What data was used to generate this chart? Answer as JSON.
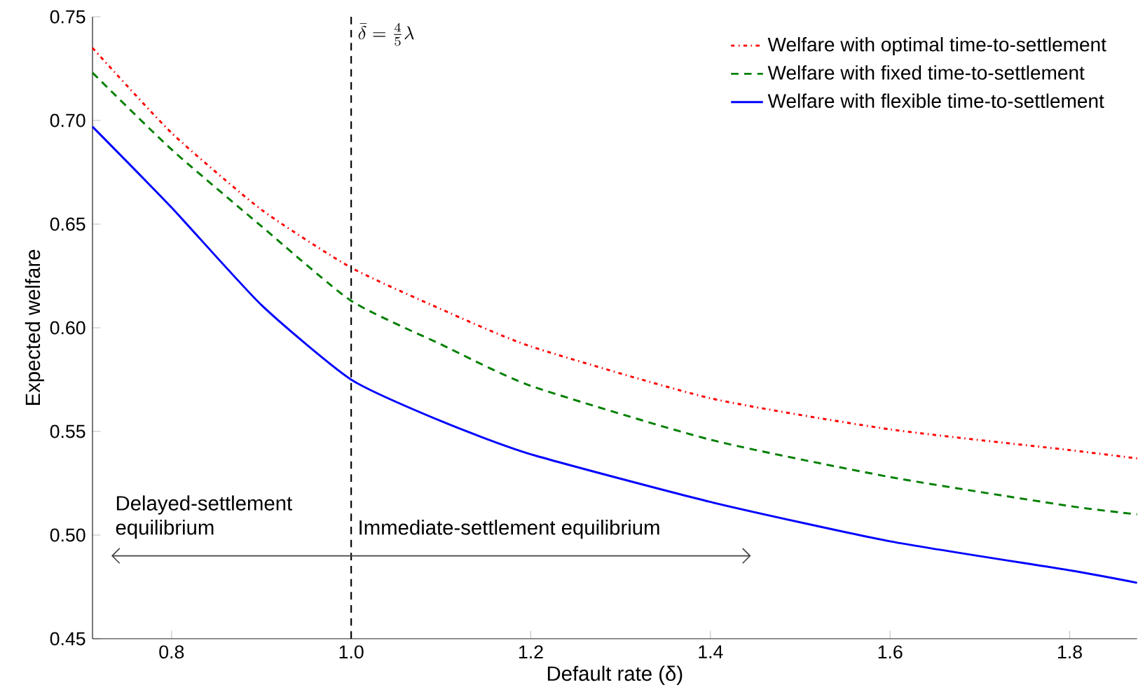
{
  "chart_data": {
    "type": "line",
    "xlabel": "Default rate (δ)",
    "ylabel": "Expected welfare",
    "xlim": [
      0.712,
      1.875
    ],
    "ylim": [
      0.45,
      0.75
    ],
    "xticks": [
      0.8,
      {
        "value": 1.0,
        "label": "1.0"
      },
      1.2,
      1.4,
      1.6,
      1.8
    ],
    "yticks": [
      0.45,
      {
        "value": 0.5,
        "label": "0.50"
      },
      0.55,
      {
        "value": 0.6,
        "label": "0.60"
      },
      0.65,
      {
        "value": 0.7,
        "label": "0.70"
      },
      0.75
    ],
    "legend": "top right",
    "grid": false,
    "series": [
      {
        "name": "Welfare with optimal time-to-settlement",
        "color": "#ff0000",
        "line_style": "dashdot",
        "x": [
          0.712,
          0.8,
          0.9,
          1.0,
          1.1,
          1.2,
          1.4,
          1.6,
          1.8,
          1.875
        ],
        "values": [
          0.735,
          0.694,
          0.657,
          0.629,
          0.609,
          0.591,
          0.566,
          0.551,
          0.541,
          0.537
        ]
      },
      {
        "name": "Welfare with fixed time-to-settlement",
        "color": "#007f00",
        "line_style": "dashed",
        "x": [
          0.712,
          0.8,
          0.9,
          1.0,
          1.1,
          1.2,
          1.4,
          1.6,
          1.8,
          1.875
        ],
        "values": [
          0.723,
          0.686,
          0.649,
          0.613,
          0.592,
          0.572,
          0.546,
          0.528,
          0.514,
          0.51
        ]
      },
      {
        "name": "Welfare with flexible time-to-settlement",
        "color": "#0000ff",
        "line_style": "solid",
        "x": [
          0.712,
          0.8,
          0.9,
          1.0,
          1.1,
          1.2,
          1.4,
          1.6,
          1.8,
          1.875
        ],
        "values": [
          0.697,
          0.658,
          0.611,
          0.575,
          0.555,
          0.539,
          0.516,
          0.497,
          0.483,
          0.477
        ]
      }
    ],
    "ref_lines": [
      {
        "axis": "x",
        "value": 1.0,
        "label": "\\bar{\\delta} = \\frac{4}{5}\\lambda",
        "color": "#000000",
        "line_style": "dashed"
      }
    ],
    "annotations": [
      "Delayed-settlement equilibrium",
      "Immediate-settlement equilibrium"
    ]
  }
}
